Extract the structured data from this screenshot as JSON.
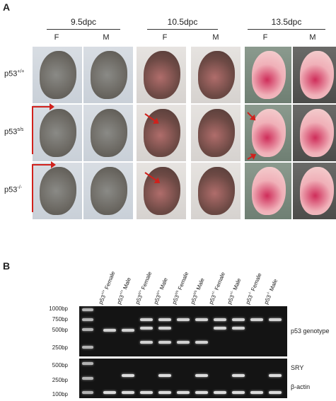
{
  "panel_a": {
    "letter": "A",
    "stages": [
      "9.5dpc",
      "10.5dpc",
      "13.5dpc"
    ],
    "sex": [
      "F",
      "M"
    ],
    "genotypes": [
      {
        "base": "p53",
        "sup": "+/+"
      },
      {
        "base": "p53",
        "sup": "s/s"
      },
      {
        "base": "p53",
        "sup": "-/-"
      }
    ]
  },
  "panel_b": {
    "letter": "B",
    "lanes": [
      {
        "base": "p53",
        "sup": "+/+",
        "sex": " Female"
      },
      {
        "base": "p53",
        "sup": "+/+",
        "sex": " Male"
      },
      {
        "base": "p53",
        "sup": "s/+",
        "sex": " Female"
      },
      {
        "base": "p53",
        "sup": "s/+",
        "sex": " Male"
      },
      {
        "base": "p53",
        "sup": "s/s",
        "sex": " Female"
      },
      {
        "base": "p53",
        "sup": "s/s",
        "sex": " Male"
      },
      {
        "base": "p53",
        "sup": "+/-",
        "sex": " Female"
      },
      {
        "base": "p53",
        "sup": "+/-",
        "sex": " Male"
      },
      {
        "base": "p53",
        "sup": "-/-",
        "sex": " Female"
      },
      {
        "base": "p53",
        "sup": "-/-",
        "sex": " Male"
      }
    ],
    "ladder_top": [
      "1000bp",
      "750bp",
      "500bp",
      "250bp"
    ],
    "ladder_bottom": [
      "500bp",
      "250bp",
      "100bp"
    ],
    "right_labels": {
      "genotype": "p53 genotype",
      "sry": "SRY",
      "actin": "β-actin"
    }
  }
}
